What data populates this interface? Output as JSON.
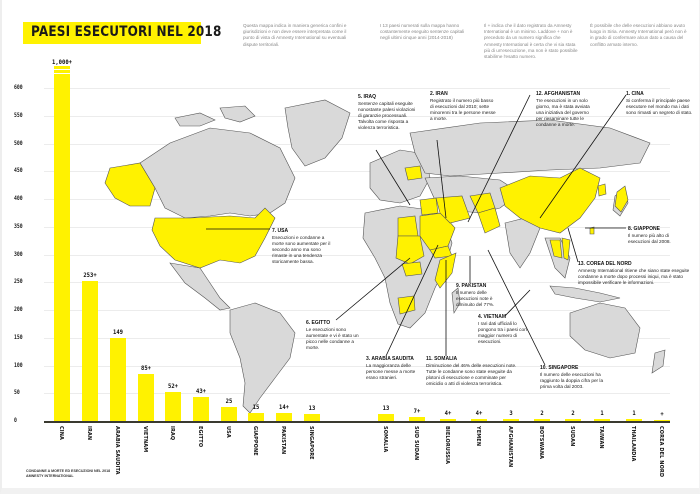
{
  "title": "PAESI ESECUTORI NEL 2018",
  "notes": [
    "Questa mappa indica in maniera generica confini e giurisdizioni e non deve essere interpretata come il punto di vista di Amnesty International su eventuali dispute territoriali.",
    "I 13 paesi numerati sulla mappa hanno costantemente eseguito sentenze capitali negli ultimi cinque anni (2014-2018)",
    "Il + indica che il dato registrato da Amnesty International è un minimo. Laddove + non è preceduto da un numero significa che Amnesty International è certa che vi sia stata più di un'esecuzione, ma non è stato possibile stabilirne l'esatto numero.",
    "È possibile che delle esecuzioni abbiano avuto luogo in Siria. Amnesty International però non è in grado di confermare alcun dato a causa del conflitto armato interno."
  ],
  "annotations": [
    {
      "id": "iraq",
      "heading": "5. IRAQ",
      "text": "Sentenze capitali eseguite nonostante palesi violazioni di garanzie processuali. Talvolta come risposta a violenza terroristica."
    },
    {
      "id": "iran",
      "heading": "2. IRAN",
      "text": "Registrato il numero più basso di esecuzioni dal 2010; sette minorenni tra le persone messe a morte."
    },
    {
      "id": "afghanistan",
      "heading": "12. AFGHANISTAN",
      "text": "Tre esecuzioni in un solo giorno, ma è stata avviata una iniziativa del governo per riesaminare tutte le condanne a morte."
    },
    {
      "id": "cina",
      "heading": "1. CINA",
      "text": "Si conferma il principale paese esecutore nel mondo ma i dati sono rimasti un segreto di stato."
    },
    {
      "id": "usa",
      "heading": "7. USA",
      "text": "Esecuzioni e condanne a morte sono aumentate per il secondo anno ma sono rimaste in una tendenza storicamente bassa."
    },
    {
      "id": "giappone",
      "heading": "8. GIAPPONE",
      "text": "Il numero più alto di esecuzioni dal 2008."
    },
    {
      "id": "corea",
      "heading": "13. COREA DEL NORD",
      "text": "Amnesty International ritiene che siano state eseguite condanne a morte dopo processi iniqui, ma è stato impossibile verificare le informazioni."
    },
    {
      "id": "pakistan",
      "heading": "9. PAKISTAN",
      "text": "Il numero delle esecuzioni note è diminuito del 77%."
    },
    {
      "id": "vietnam",
      "heading": "4. VIETNAM",
      "text": "I rari dati ufficiali lo pongono tra i paesi con maggior numero di esecuzioni."
    },
    {
      "id": "egitto",
      "heading": "6. EGITTO",
      "text": "Le esecuzioni sono aumentate e vi è stato un picco nelle condanne a morte."
    },
    {
      "id": "arabia",
      "heading": "3. ARABIA SAUDITA",
      "text": "La maggioranza delle persone messe a morte erano stranieri."
    },
    {
      "id": "somalia",
      "heading": "11. SOMALIA",
      "text": "Diminuzione del 46% delle esecuzioni note. Tutte le condanne sono state eseguite da plotoni di esecuzione e comminate per omicidio o atti di violenza terroristica."
    },
    {
      "id": "singapore",
      "heading": "10. SINGAPORE",
      "text": "Il numero delle esecuzioni ha raggiunto la doppia cifra per la prima volta dal 2003."
    }
  ],
  "source": [
    "CONDANNE A MORTE ED ESECUZIONI NEL 2018",
    "AMNESTY INTERNATIONAL"
  ],
  "colors": {
    "accent": "#fff200",
    "land": "#d9d9d9",
    "axis": "#3a3a30",
    "text": "#111111"
  },
  "chart_data": {
    "type": "bar",
    "title": "PAESI ESECUTORI NEL 2018",
    "xlabel": "",
    "ylabel": "",
    "ylim": [
      0,
      600
    ],
    "yticks": [
      0,
      50,
      100,
      150,
      200,
      250,
      300,
      350,
      400,
      450,
      500,
      550,
      600
    ],
    "grid": true,
    "categories": [
      "CINA",
      "IRAN",
      "ARABIA SAUDITA",
      "VIETNAM",
      "IRAQ",
      "EGITTO",
      "USA",
      "GIAPPONE",
      "PAKISTAN",
      "SINGAPORE",
      "SOMALIA",
      "SUD SUDAN",
      "BIELORUSSIA",
      "YEMEN",
      "AFGHANISTAN",
      "BOTSWANA",
      "SUDAN",
      "TAIWAN",
      "THAILANDIA",
      "COREA DEL NORD"
    ],
    "values": [
      1000,
      253,
      149,
      85,
      52,
      43,
      25,
      15,
      14,
      13,
      13,
      7,
      4,
      4,
      3,
      2,
      2,
      1,
      1,
      null
    ],
    "labels": [
      "1,000+",
      "253+",
      "149",
      "85+",
      "52+",
      "43+",
      "25",
      "15",
      "14+",
      "13",
      "13",
      "7+",
      "4+",
      "4+",
      "3",
      "2",
      "2",
      "1",
      "1",
      "+"
    ],
    "annotations": [
      "CINA bar truncated (value exceeds axis max of 600)"
    ]
  }
}
